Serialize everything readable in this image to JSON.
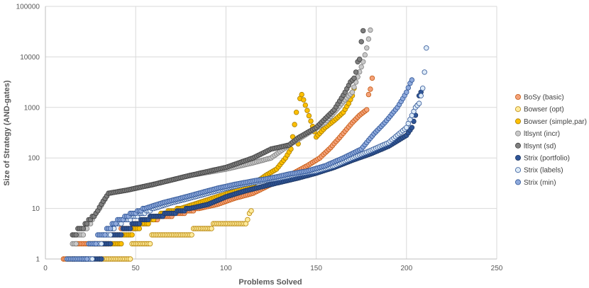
{
  "chart_data": {
    "type": "scatter",
    "title": "",
    "xlabel": "Problems Solved",
    "ylabel": "Size of Strategy (AND-gates)",
    "xlim": [
      0,
      250
    ],
    "ylim": [
      1,
      100000
    ],
    "yscale": "log",
    "xticks": [
      "0",
      "50",
      "100",
      "150",
      "200",
      "250"
    ],
    "yticks": [
      "1",
      "10",
      "100",
      "1000",
      "10000",
      "100000"
    ],
    "grid": true,
    "legend_position": "right",
    "series": [
      {
        "name": "BoSy (basic)",
        "color": "#F4A27A",
        "stroke": "#C55A11",
        "key": [
          [
            10,
            1
          ],
          [
            15,
            1
          ],
          [
            18,
            2
          ],
          [
            25,
            2
          ],
          [
            32,
            2
          ],
          [
            38,
            3
          ],
          [
            45,
            4
          ],
          [
            55,
            5
          ],
          [
            65,
            7
          ],
          [
            75,
            8
          ],
          [
            85,
            10
          ],
          [
            95,
            12
          ],
          [
            105,
            16
          ],
          [
            115,
            20
          ],
          [
            125,
            30
          ],
          [
            135,
            45
          ],
          [
            145,
            70
          ],
          [
            152,
            100
          ],
          [
            158,
            160
          ],
          [
            164,
            280
          ],
          [
            170,
            500
          ],
          [
            174,
            700
          ],
          [
            178,
            900
          ],
          [
            179,
            1800
          ],
          [
            180,
            2300
          ],
          [
            181,
            3800
          ]
        ]
      },
      {
        "name": "Bowser (opt)",
        "color": "#FFEB9C",
        "stroke": "#B8860B",
        "key": [
          [
            30,
            1
          ],
          [
            45,
            1
          ],
          [
            46,
            1
          ],
          [
            48,
            2
          ],
          [
            58,
            2
          ],
          [
            59,
            3
          ],
          [
            80,
            3
          ],
          [
            82,
            4
          ],
          [
            92,
            4
          ],
          [
            93,
            5
          ],
          [
            110,
            5
          ],
          [
            112,
            6
          ],
          [
            113,
            8
          ],
          [
            114,
            9
          ]
        ]
      },
      {
        "name": "Bowser (simple,par)",
        "color": "#FFC000",
        "stroke": "#A67C00",
        "key": [
          [
            12,
            1
          ],
          [
            22,
            1
          ],
          [
            25,
            2
          ],
          [
            40,
            2
          ],
          [
            45,
            3
          ],
          [
            55,
            5
          ],
          [
            65,
            8
          ],
          [
            75,
            10
          ],
          [
            85,
            13
          ],
          [
            95,
            17
          ],
          [
            105,
            22
          ],
          [
            115,
            30
          ],
          [
            122,
            45
          ],
          [
            128,
            60
          ],
          [
            133,
            100
          ],
          [
            136,
            150
          ],
          [
            140,
            190
          ],
          [
            150,
            260
          ],
          [
            155,
            400
          ],
          [
            160,
            550
          ],
          [
            165,
            800
          ],
          [
            168,
            1200
          ],
          [
            170,
            1700
          ],
          [
            171,
            2400
          ],
          [
            139,
            800
          ],
          [
            141,
            1500
          ],
          [
            142,
            1800
          ]
        ]
      },
      {
        "name": "ltlsynt (incr)",
        "color": "#C9C9C9",
        "stroke": "#7F7F7F",
        "key": [
          [
            15,
            2
          ],
          [
            20,
            3
          ],
          [
            25,
            5
          ],
          [
            30,
            10
          ],
          [
            35,
            20
          ],
          [
            45,
            23
          ],
          [
            60,
            30
          ],
          [
            80,
            45
          ],
          [
            100,
            60
          ],
          [
            115,
            80
          ],
          [
            125,
            100
          ],
          [
            135,
            180
          ],
          [
            145,
            300
          ],
          [
            155,
            500
          ],
          [
            160,
            800
          ],
          [
            165,
            1300
          ],
          [
            170,
            2000
          ],
          [
            173,
            4000
          ],
          [
            176,
            8000
          ],
          [
            178,
            15000
          ],
          [
            180,
            34000
          ]
        ]
      },
      {
        "name": "ltlsynt (sd)",
        "color": "#7F7F7F",
        "stroke": "#404040",
        "key": [
          [
            15,
            3
          ],
          [
            20,
            4
          ],
          [
            24,
            6
          ],
          [
            28,
            8
          ],
          [
            32,
            14
          ],
          [
            35,
            20
          ],
          [
            45,
            23
          ],
          [
            60,
            30
          ],
          [
            80,
            45
          ],
          [
            100,
            65
          ],
          [
            115,
            100
          ],
          [
            125,
            150
          ],
          [
            135,
            180
          ],
          [
            140,
            250
          ],
          [
            150,
            400
          ],
          [
            160,
            900
          ],
          [
            166,
            2000
          ],
          [
            169,
            3200
          ],
          [
            171,
            3800
          ],
          [
            172,
            5000
          ],
          [
            173,
            8000
          ],
          [
            174,
            9000
          ],
          [
            175,
            20000
          ],
          [
            176,
            33000
          ]
        ]
      },
      {
        "name": "Strix (portfolio)",
        "color": "#2F5597",
        "stroke": "#1F3864",
        "key": [
          [
            20,
            1
          ],
          [
            30,
            1
          ],
          [
            33,
            2
          ],
          [
            40,
            3
          ],
          [
            45,
            4
          ],
          [
            50,
            5
          ],
          [
            60,
            7
          ],
          [
            70,
            8
          ],
          [
            80,
            10
          ],
          [
            90,
            12
          ],
          [
            100,
            17
          ],
          [
            110,
            22
          ],
          [
            120,
            27
          ],
          [
            130,
            33
          ],
          [
            140,
            40
          ],
          [
            150,
            50
          ],
          [
            160,
            65
          ],
          [
            170,
            90
          ],
          [
            180,
            120
          ],
          [
            190,
            170
          ],
          [
            200,
            280
          ],
          [
            203,
            400
          ],
          [
            205,
            700
          ],
          [
            206,
            1100
          ],
          [
            207,
            1700
          ],
          [
            208,
            2000
          ]
        ]
      },
      {
        "name": "Strix (labels)",
        "color": "#DEEBF7",
        "stroke": "#2F5597",
        "key": [
          [
            15,
            1
          ],
          [
            25,
            1
          ],
          [
            27,
            2
          ],
          [
            35,
            3
          ],
          [
            40,
            5
          ],
          [
            50,
            7
          ],
          [
            60,
            10
          ],
          [
            70,
            13
          ],
          [
            80,
            16
          ],
          [
            90,
            20
          ],
          [
            100,
            25
          ],
          [
            110,
            30
          ],
          [
            120,
            35
          ],
          [
            130,
            40
          ],
          [
            140,
            48
          ],
          [
            150,
            55
          ],
          [
            160,
            70
          ],
          [
            170,
            100
          ],
          [
            180,
            140
          ],
          [
            190,
            200
          ],
          [
            200,
            400
          ],
          [
            205,
            1000
          ],
          [
            207,
            1200
          ],
          [
            208,
            1700
          ],
          [
            209,
            2400
          ],
          [
            210,
            5000
          ],
          [
            211,
            15000
          ]
        ]
      },
      {
        "name": "Strix (min)",
        "color": "#8FAADC",
        "stroke": "#2F5597",
        "key": [
          [
            12,
            1
          ],
          [
            22,
            1
          ],
          [
            25,
            2
          ],
          [
            32,
            3
          ],
          [
            38,
            5
          ],
          [
            45,
            7
          ],
          [
            55,
            10
          ],
          [
            65,
            13
          ],
          [
            75,
            16
          ],
          [
            85,
            20
          ],
          [
            95,
            25
          ],
          [
            105,
            30
          ],
          [
            115,
            35
          ],
          [
            125,
            40
          ],
          [
            135,
            48
          ],
          [
            145,
            55
          ],
          [
            155,
            70
          ],
          [
            165,
            100
          ],
          [
            175,
            150
          ],
          [
            182,
            300
          ],
          [
            188,
            500
          ],
          [
            195,
            1000
          ],
          [
            198,
            1500
          ],
          [
            200,
            2000
          ],
          [
            202,
            3000
          ],
          [
            203,
            3500
          ]
        ]
      }
    ]
  }
}
